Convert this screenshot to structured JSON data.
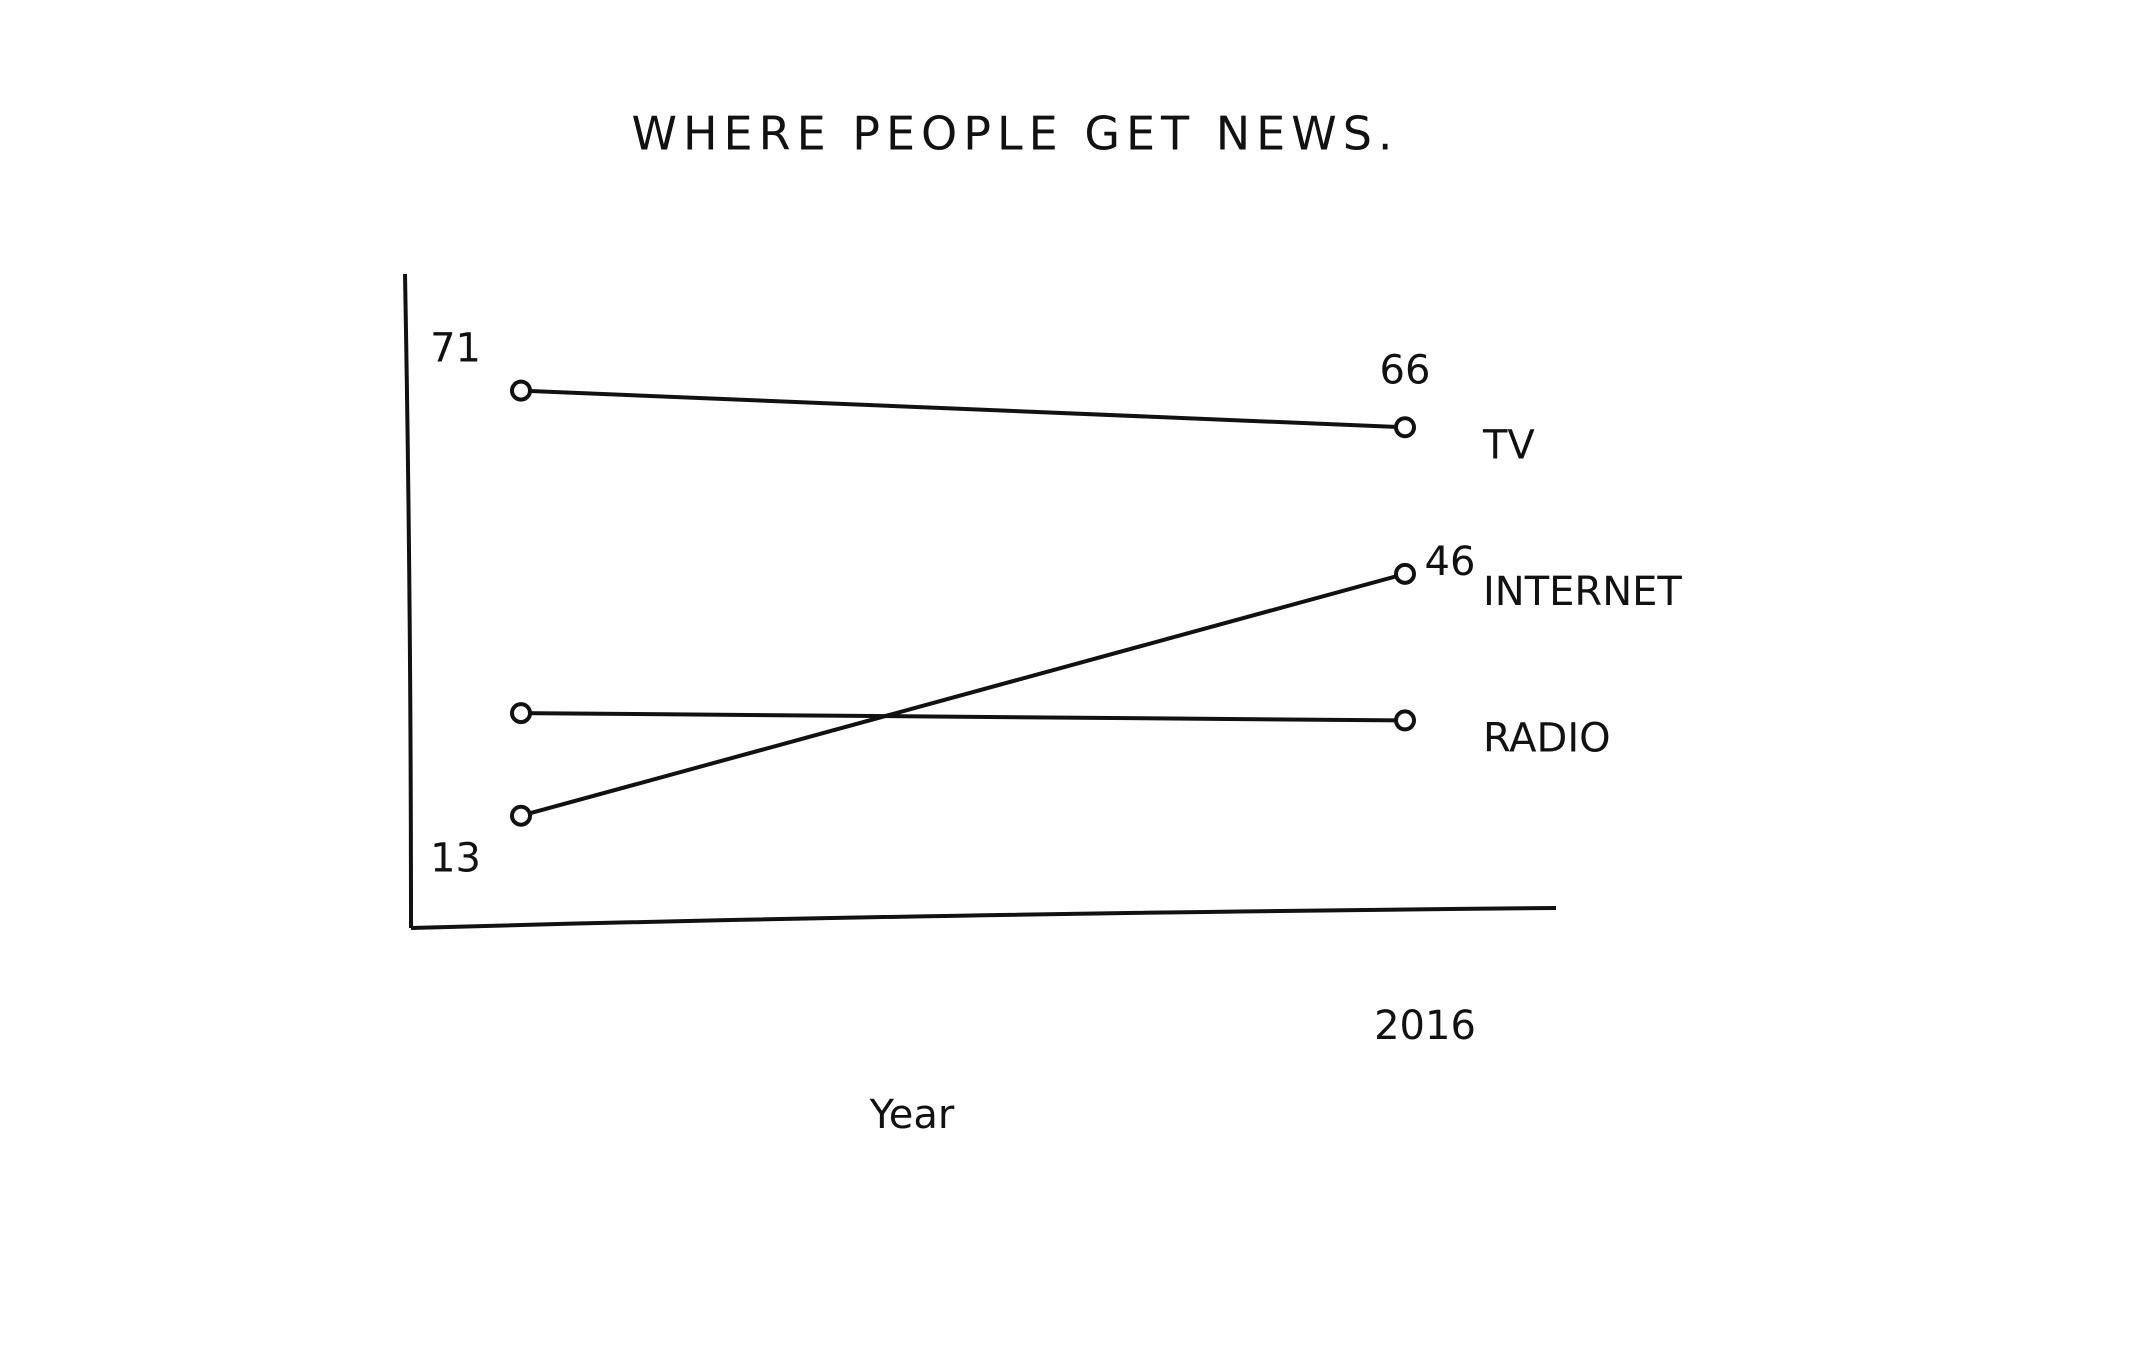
{
  "chart_data": {
    "type": "line",
    "title": "WHERE PEOPLE GET NEWS.",
    "x_label": "Year",
    "categories": [
      null,
      "2016"
    ],
    "ylim": [
      0,
      85
    ],
    "series": [
      {
        "name": "TV",
        "color": "#111111",
        "values": [
          71,
          66
        ],
        "data_labels": true
      },
      {
        "name": "INTERNET",
        "color": "#111111",
        "values": [
          13,
          46
        ],
        "data_labels": true
      },
      {
        "name": "RADIO",
        "color": "#111111",
        "values": [
          27,
          26
        ],
        "data_labels": false
      }
    ]
  }
}
